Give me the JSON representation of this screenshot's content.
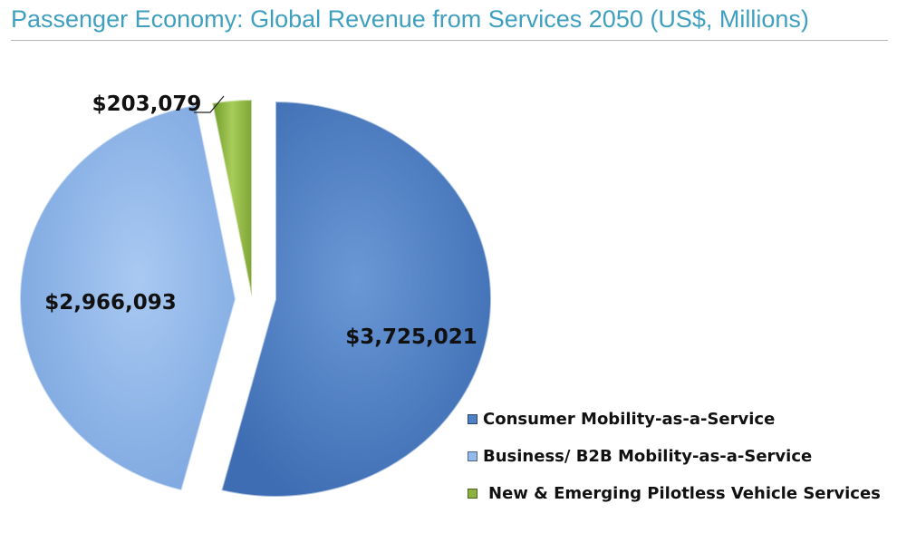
{
  "page": {
    "title": "Passenger Economy: Global Revenue from Services 2050 (US$, Millions)"
  },
  "chart_data": {
    "type": "pie",
    "title": "",
    "slices": [
      {
        "label": "Consumer Mobility-as-a-Service",
        "value": 3725021,
        "display": "$3,725,021",
        "color": "#4f7fc4"
      },
      {
        "label": "Business/ B2B Mobility-as-a-Service",
        "value": 2966093,
        "display": "$2,966,093",
        "color": "#93baea"
      },
      {
        "label": "New & Emerging Pilotless Vehicle Services",
        "value": 203079,
        "display": "$203,079",
        "color": "#8db33e"
      }
    ],
    "exploded": true,
    "legend_position": "bottom-right"
  }
}
